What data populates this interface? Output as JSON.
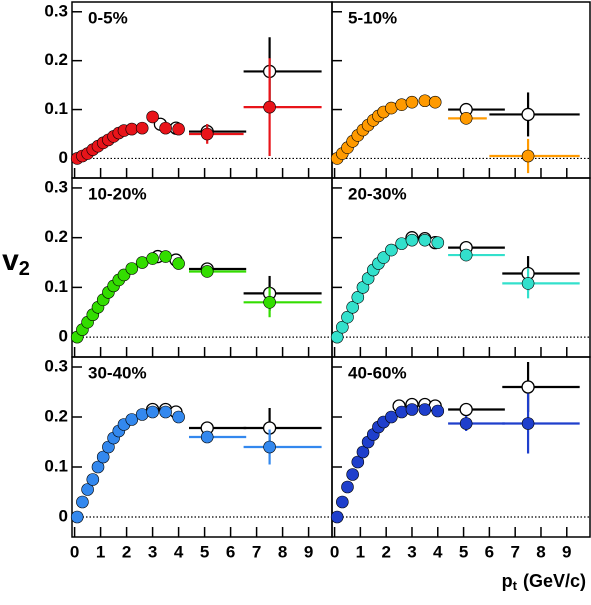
{
  "ylabel": "v",
  "ylabel_sub": "2",
  "xlabel": "p",
  "xlabel_sub": "t",
  "xlabel_unit": "(GeV/c)",
  "chart_data": [
    {
      "type": "scatter",
      "title": "0-5%",
      "xlim": [
        -0.1,
        9.9
      ],
      "ylim": [
        -0.04,
        0.32
      ],
      "xticks": [
        0,
        1,
        2,
        3,
        4,
        5,
        6,
        7,
        8,
        9
      ],
      "yticks": [
        0,
        0.1,
        0.2,
        0.3
      ],
      "series": [
        {
          "color": "#000000",
          "fill": false,
          "x": [
            3.3,
            3.9
          ],
          "values": [
            0.07,
            0.062
          ]
        },
        {
          "color": "#e8141a",
          "fill": true,
          "x": [
            0.1,
            0.3,
            0.5,
            0.7,
            0.9,
            1.1,
            1.3,
            1.5,
            1.7,
            1.9,
            2.2,
            2.6,
            3.0,
            3.5,
            4.0
          ],
          "values": [
            0.0,
            0.005,
            0.01,
            0.018,
            0.025,
            0.032,
            0.038,
            0.045,
            0.052,
            0.057,
            0.06,
            0.062,
            0.085,
            0.062,
            0.06
          ]
        }
      ],
      "binned": [
        {
          "color": "#000000",
          "fill": false,
          "x": [
            5.1,
            7.5
          ],
          "x_low": [
            4.4,
            6.5
          ],
          "x_high": [
            6.6,
            9.5
          ],
          "values": [
            0.055,
            0.178
          ],
          "errors": [
            0.015,
            0.07
          ]
        },
        {
          "color": "#e8141a",
          "fill": true,
          "x": [
            5.1,
            7.5
          ],
          "x_low": [
            4.4,
            6.5
          ],
          "x_high": [
            6.5,
            9.5
          ],
          "values": [
            0.05,
            0.105
          ],
          "errors": [
            0.02,
            0.1
          ]
        }
      ]
    },
    {
      "type": "scatter",
      "title": "5-10%",
      "xlim": [
        -0.1,
        9.9
      ],
      "ylim": [
        -0.04,
        0.32
      ],
      "xticks": [
        0,
        1,
        2,
        3,
        4,
        5,
        6,
        7,
        8,
        9
      ],
      "yticks": [
        0,
        0.1,
        0.2,
        0.3
      ],
      "series": [
        {
          "color": "#ff9a00",
          "fill": true,
          "x": [
            0.1,
            0.3,
            0.5,
            0.7,
            0.9,
            1.1,
            1.3,
            1.5,
            1.7,
            1.9,
            2.2,
            2.6,
            3.0,
            3.5,
            3.9
          ],
          "values": [
            0.0,
            0.01,
            0.022,
            0.035,
            0.047,
            0.058,
            0.068,
            0.078,
            0.087,
            0.095,
            0.103,
            0.11,
            0.115,
            0.118,
            0.115
          ]
        }
      ],
      "binned": [
        {
          "color": "#000000",
          "fill": false,
          "x": [
            5.1,
            7.5
          ],
          "x_low": [
            4.4,
            6.0
          ],
          "x_high": [
            6.6,
            9.5
          ],
          "values": [
            0.1,
            0.09
          ],
          "errors": [
            0.01,
            0.045
          ]
        },
        {
          "color": "#ff9a00",
          "fill": true,
          "x": [
            5.1,
            7.5
          ],
          "x_low": [
            4.4,
            6.0
          ],
          "x_high": [
            5.9,
            9.5
          ],
          "values": [
            0.082,
            0.005
          ],
          "errors": [
            0.01,
            0.035
          ]
        }
      ]
    },
    {
      "type": "scatter",
      "title": "10-20%",
      "xlim": [
        -0.1,
        9.9
      ],
      "ylim": [
        -0.04,
        0.32
      ],
      "xticks": [
        0,
        1,
        2,
        3,
        4,
        5,
        6,
        7,
        8,
        9
      ],
      "yticks": [
        0,
        0.1,
        0.2,
        0.3
      ],
      "series": [
        {
          "color": "#000000",
          "fill": false,
          "x": [
            3.2,
            3.9
          ],
          "values": [
            0.162,
            0.155
          ]
        },
        {
          "color": "#33dd00",
          "fill": true,
          "x": [
            0.1,
            0.3,
            0.5,
            0.7,
            0.9,
            1.1,
            1.3,
            1.5,
            1.7,
            1.9,
            2.2,
            2.6,
            3.0,
            3.5,
            4.0
          ],
          "values": [
            0.0,
            0.015,
            0.03,
            0.045,
            0.06,
            0.075,
            0.09,
            0.103,
            0.115,
            0.125,
            0.138,
            0.15,
            0.158,
            0.162,
            0.148
          ]
        }
      ],
      "binned": [
        {
          "color": "#000000",
          "fill": false,
          "x": [
            5.1,
            7.5
          ],
          "x_low": [
            4.4,
            6.5
          ],
          "x_high": [
            6.6,
            9.5
          ],
          "values": [
            0.137,
            0.088
          ],
          "errors": [
            0.008,
            0.035
          ]
        },
        {
          "color": "#33dd00",
          "fill": true,
          "x": [
            5.1,
            7.5
          ],
          "x_low": [
            4.4,
            6.5
          ],
          "x_high": [
            6.6,
            9.5
          ],
          "values": [
            0.132,
            0.07
          ],
          "errors": [
            0.008,
            0.03
          ]
        }
      ]
    },
    {
      "type": "scatter",
      "title": "20-30%",
      "xlim": [
        -0.1,
        9.9
      ],
      "ylim": [
        -0.04,
        0.32
      ],
      "xticks": [
        0,
        1,
        2,
        3,
        4,
        5,
        6,
        7,
        8,
        9
      ],
      "yticks": [
        0,
        0.1,
        0.2,
        0.3
      ],
      "series": [
        {
          "color": "#000000",
          "fill": false,
          "x": [
            3.0,
            3.5,
            3.9
          ],
          "values": [
            0.2,
            0.198,
            0.19
          ]
        },
        {
          "color": "#33e0cc",
          "fill": true,
          "x": [
            0.1,
            0.3,
            0.5,
            0.7,
            0.9,
            1.1,
            1.3,
            1.5,
            1.7,
            1.9,
            2.2,
            2.6,
            3.0,
            3.5,
            4.0
          ],
          "values": [
            0.0,
            0.02,
            0.04,
            0.06,
            0.08,
            0.1,
            0.118,
            0.135,
            0.148,
            0.16,
            0.175,
            0.188,
            0.195,
            0.195,
            0.19
          ]
        }
      ],
      "binned": [
        {
          "color": "#000000",
          "fill": false,
          "x": [
            5.1,
            7.5
          ],
          "x_low": [
            4.4,
            6.5
          ],
          "x_high": [
            6.6,
            9.5
          ],
          "values": [
            0.18,
            0.128
          ],
          "errors": [
            0.008,
            0.035
          ]
        },
        {
          "color": "#33e0cc",
          "fill": true,
          "x": [
            5.1,
            7.5
          ],
          "x_low": [
            4.4,
            6.5
          ],
          "x_high": [
            6.6,
            9.5
          ],
          "values": [
            0.165,
            0.108
          ],
          "errors": [
            0.008,
            0.03
          ]
        }
      ]
    },
    {
      "type": "scatter",
      "title": "30-40%",
      "xlim": [
        -0.1,
        9.9
      ],
      "ylim": [
        -0.04,
        0.32
      ],
      "xticks": [
        0,
        1,
        2,
        3,
        4,
        5,
        6,
        7,
        8,
        9
      ],
      "yticks": [
        0,
        0.1,
        0.2,
        0.3
      ],
      "series": [
        {
          "color": "#000000",
          "fill": false,
          "x": [
            3.0,
            3.5,
            3.9
          ],
          "values": [
            0.215,
            0.215,
            0.21
          ]
        },
        {
          "color": "#3388ee",
          "fill": true,
          "x": [
            0.1,
            0.3,
            0.5,
            0.7,
            0.9,
            1.1,
            1.3,
            1.5,
            1.7,
            1.9,
            2.2,
            2.6,
            3.0,
            3.5,
            4.0
          ],
          "values": [
            0.0,
            0.03,
            0.055,
            0.075,
            0.1,
            0.12,
            0.14,
            0.158,
            0.172,
            0.185,
            0.195,
            0.205,
            0.21,
            0.21,
            0.2
          ]
        }
      ],
      "binned": [
        {
          "color": "#000000",
          "fill": false,
          "x": [
            5.1,
            7.5
          ],
          "x_low": [
            4.4,
            6.5
          ],
          "x_high": [
            6.6,
            9.5
          ],
          "values": [
            0.178,
            0.178
          ],
          "errors": [
            0.01,
            0.04
          ]
        },
        {
          "color": "#3388ee",
          "fill": true,
          "x": [
            5.1,
            7.5
          ],
          "x_low": [
            4.4,
            6.5
          ],
          "x_high": [
            6.6,
            9.5
          ],
          "values": [
            0.16,
            0.14
          ],
          "errors": [
            0.01,
            0.035
          ]
        }
      ]
    },
    {
      "type": "scatter",
      "title": "40-60%",
      "xlim": [
        -0.1,
        9.9
      ],
      "ylim": [
        -0.04,
        0.32
      ],
      "xticks": [
        0,
        1,
        2,
        3,
        4,
        5,
        6,
        7,
        8,
        9
      ],
      "yticks": [
        0,
        0.1,
        0.2,
        0.3
      ],
      "series": [
        {
          "color": "#000000",
          "fill": false,
          "x": [
            2.5,
            3.0,
            3.5,
            3.9
          ],
          "values": [
            0.222,
            0.225,
            0.225,
            0.222
          ]
        },
        {
          "color": "#1f3fcc",
          "fill": true,
          "x": [
            0.1,
            0.3,
            0.5,
            0.7,
            0.9,
            1.1,
            1.3,
            1.5,
            1.7,
            1.9,
            2.2,
            2.6,
            3.0,
            3.5,
            4.0
          ],
          "values": [
            0.0,
            0.03,
            0.06,
            0.085,
            0.11,
            0.13,
            0.15,
            0.165,
            0.18,
            0.19,
            0.2,
            0.21,
            0.215,
            0.215,
            0.212
          ]
        }
      ],
      "binned": [
        {
          "color": "#000000",
          "fill": false,
          "x": [
            5.1,
            7.5
          ],
          "x_low": [
            4.4,
            6.5
          ],
          "x_high": [
            6.6,
            9.5
          ],
          "values": [
            0.215,
            0.26
          ],
          "errors": [
            0.01,
            0.05
          ]
        },
        {
          "color": "#1f3fcc",
          "fill": true,
          "x": [
            5.1,
            7.5
          ],
          "x_low": [
            4.4,
            6.5
          ],
          "x_high": [
            6.6,
            9.5
          ],
          "values": [
            0.187,
            0.187
          ],
          "errors": [
            0.015,
            0.06
          ]
        }
      ]
    }
  ]
}
